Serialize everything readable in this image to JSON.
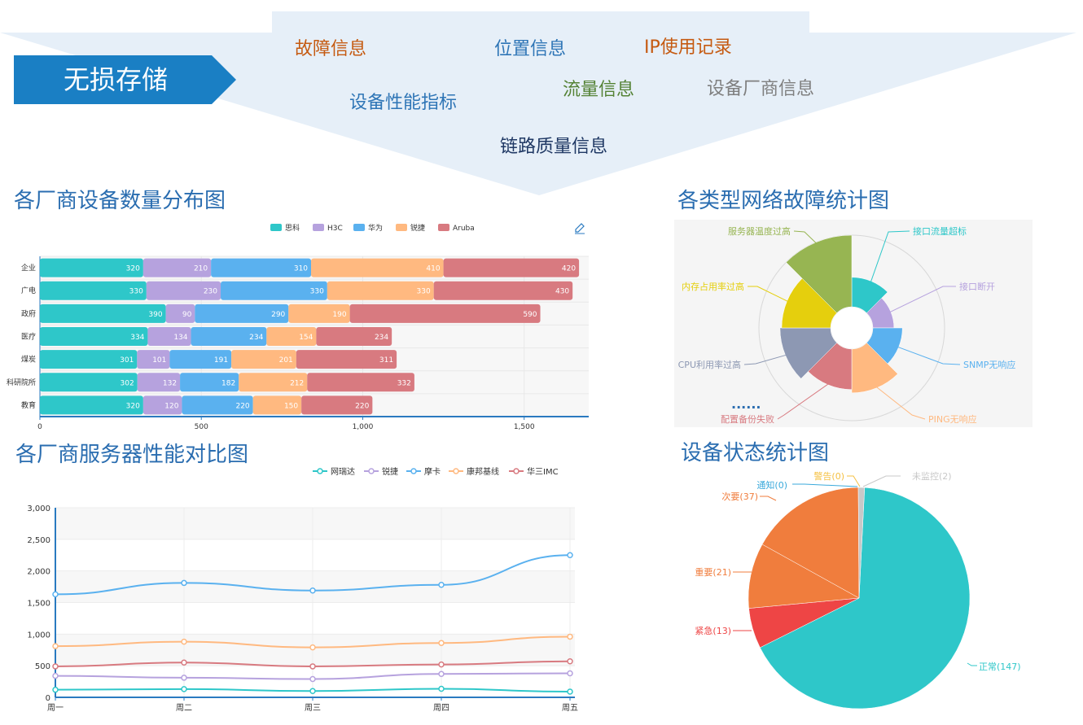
{
  "banner": {
    "label": "无损存储",
    "tags": [
      {
        "text": "故障信息",
        "color": "#c55a11"
      },
      {
        "text": "位置信息",
        "color": "#2e75b6"
      },
      {
        "text": "IP使用记录",
        "color": "#c55a11"
      },
      {
        "text": "设备性能指标",
        "color": "#2e75b6"
      },
      {
        "text": "流量信息",
        "color": "#548235"
      },
      {
        "text": "设备厂商信息",
        "color": "#7f7f7f"
      },
      {
        "text": "链路质量信息",
        "color": "#1f3864"
      }
    ],
    "colors": {
      "arrow_fill": "#e6eff8",
      "label_fill": "#1a7fc4"
    }
  },
  "sections": {
    "vendor_title": "各厂商设备数量分布图",
    "fault_title": "各类型网络故障统计图",
    "server_title": "各厂商服务器性能对比图",
    "status_title": "设备状态统计图"
  },
  "chart_data": [
    {
      "id": "vendor",
      "type": "bar",
      "orientation": "horizontal",
      "stacked": true,
      "categories": [
        "企业",
        "广电",
        "政府",
        "医疗",
        "煤炭",
        "科研院所",
        "教育"
      ],
      "series": [
        {
          "name": "思科",
          "color": "#2ec7c9",
          "values": [
            320,
            330,
            390,
            334,
            301,
            302,
            320
          ]
        },
        {
          "name": "H3C",
          "color": "#b6a2de",
          "values": [
            210,
            230,
            90,
            134,
            101,
            132,
            120
          ]
        },
        {
          "name": "华为",
          "color": "#5ab1ef",
          "values": [
            310,
            330,
            290,
            234,
            191,
            182,
            220
          ]
        },
        {
          "name": "锐捷",
          "color": "#ffb980",
          "values": [
            410,
            330,
            190,
            154,
            201,
            212,
            150
          ]
        },
        {
          "name": "Aruba",
          "color": "#d87a80",
          "values": [
            420,
            430,
            590,
            234,
            311,
            332,
            220
          ]
        }
      ],
      "xlim": [
        0,
        1700
      ],
      "xticks": [
        0,
        500,
        1000,
        1500
      ],
      "xtick_labels": [
        "0",
        "500",
        "1,000",
        "1,500"
      ],
      "legend": "top-center",
      "grid": true
    },
    {
      "id": "fault",
      "type": "pie",
      "variant": "rose",
      "categories": [
        "接口流量超标",
        "接口断开",
        "SNMP无响应",
        "PING无响应",
        "配置备份失败",
        "CPU利用率过高",
        "内存占用率过高",
        "服务器温度过高"
      ],
      "values": [
        3.5,
        2.5,
        3.5,
        5.2,
        4.8,
        6.0,
        5.8,
        8.5
      ],
      "colors": [
        "#2ec7c9",
        "#b6a2de",
        "#5ab1ef",
        "#ffb980",
        "#d87a80",
        "#8d98b3",
        "#e5cf0d",
        "#97b552"
      ],
      "annotation": "......"
    },
    {
      "id": "server",
      "type": "line",
      "categories": [
        "周一",
        "周二",
        "周三",
        "周四",
        "周五"
      ],
      "series": [
        {
          "name": "网瑞达",
          "color": "#2ec7c9",
          "values": [
            120,
            130,
            100,
            135,
            90
          ]
        },
        {
          "name": "锐捷",
          "color": "#b6a2de",
          "values": [
            340,
            310,
            290,
            370,
            380
          ]
        },
        {
          "name": "摩卡",
          "color": "#5ab1ef",
          "values": [
            1630,
            1810,
            1690,
            1780,
            2250
          ]
        },
        {
          "name": "康邦基线",
          "color": "#ffb980",
          "values": [
            810,
            880,
            790,
            860,
            960
          ]
        },
        {
          "name": "华三IMC",
          "color": "#d87a80",
          "values": [
            490,
            550,
            490,
            520,
            570
          ]
        }
      ],
      "ylim": [
        0,
        3000
      ],
      "yticks": [
        0,
        500,
        1000,
        1500,
        2000,
        2500,
        3000
      ],
      "ytick_labels": [
        "0",
        "500",
        "1,000",
        "1,500",
        "2,000",
        "2,500",
        "3,000"
      ],
      "legend": "top-right",
      "grid": true
    },
    {
      "id": "status",
      "type": "pie",
      "categories": [
        "正常",
        "紧急",
        "重要",
        "次要",
        "通知",
        "警告",
        "未监控"
      ],
      "values": [
        147,
        13,
        21,
        37,
        0,
        0,
        2
      ],
      "labels": [
        "正常(147)",
        "紧急(13)",
        "重要(21)",
        "次要(37)",
        "通知(0)",
        "警告(0)",
        "未监控(2)"
      ],
      "colors": [
        "#2ec7c9",
        "#ee4545",
        "#f07d3d",
        "#f07d3d",
        "#3aa9db",
        "#f5c042",
        "#c8c8c8"
      ]
    }
  ]
}
